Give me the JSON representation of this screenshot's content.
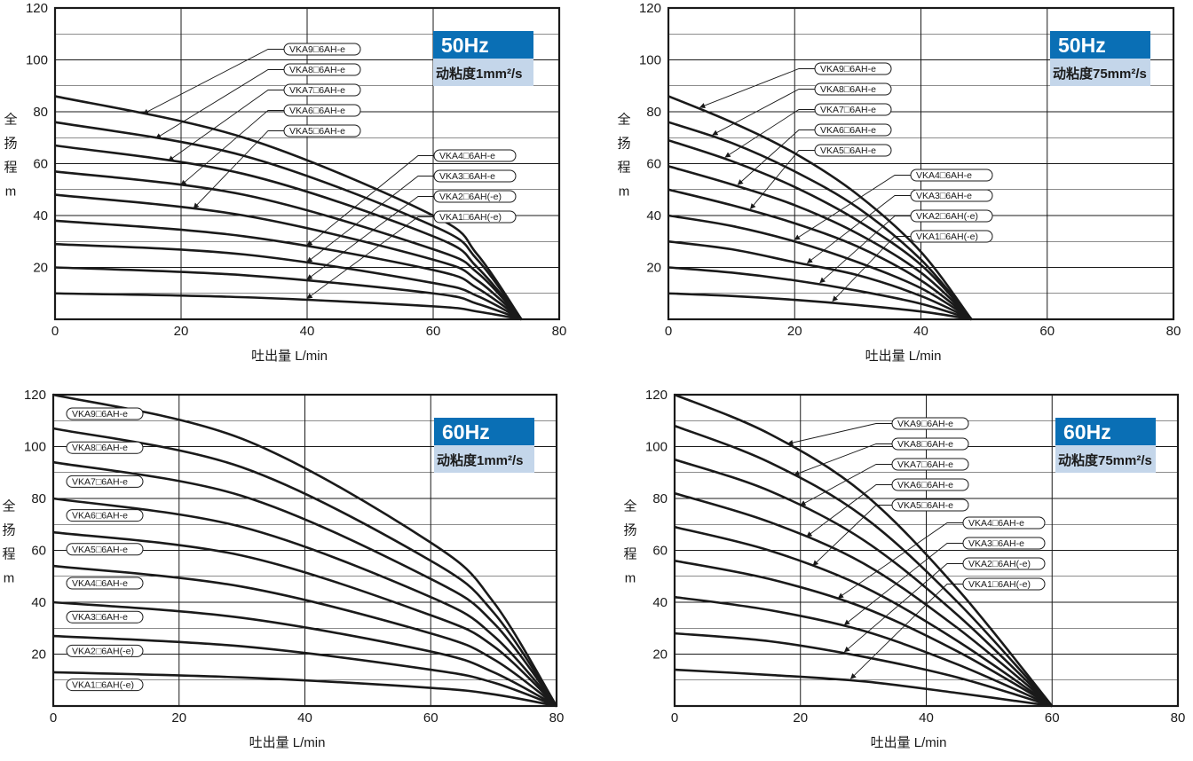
{
  "colors": {
    "curve": "#1a1a1a",
    "grid": "#1a1a1a",
    "badge_title_bg": "#0a6fb5",
    "badge_sub_bg": "#c4d6ea"
  },
  "chart_data": [
    {
      "type": "line",
      "badge": {
        "freq": "50Hz",
        "viscosity": "动粘度1mm²/s"
      },
      "xlabel": "吐出量  L/min",
      "ylabel_chars": [
        "全",
        "扬",
        "程",
        "m"
      ],
      "xlim": [
        0,
        80
      ],
      "ylim": [
        0,
        120
      ],
      "grid": true,
      "x_ticks": [
        "0",
        "20",
        "40",
        "60",
        "80"
      ],
      "y_ticks": [
        "20",
        "40",
        "60",
        "80",
        "100",
        "120"
      ],
      "x_max_flow": 74,
      "series": [
        {
          "name": "VKA9□6AH-e",
          "shutoff_head": 86,
          "values": [
            [
              0,
              86
            ],
            [
              30,
              70
            ],
            [
              60,
              40
            ],
            [
              67,
              25
            ],
            [
              74,
              0
            ]
          ]
        },
        {
          "name": "VKA8□6AH-e",
          "shutoff_head": 76,
          "values": [
            [
              0,
              76
            ],
            [
              30,
              63
            ],
            [
              60,
              36
            ],
            [
              67,
              23
            ],
            [
              74,
              0
            ]
          ]
        },
        {
          "name": "VKA7□6AH-e",
          "shutoff_head": 67,
          "values": [
            [
              0,
              67
            ],
            [
              30,
              56
            ],
            [
              60,
              32
            ],
            [
              67,
              20
            ],
            [
              74,
              0
            ]
          ]
        },
        {
          "name": "VKA6□6AH-e",
          "shutoff_head": 57,
          "values": [
            [
              0,
              57
            ],
            [
              30,
              48
            ],
            [
              60,
              27
            ],
            [
              67,
              18
            ],
            [
              74,
              0
            ]
          ]
        },
        {
          "name": "VKA5□6AH-e",
          "shutoff_head": 48,
          "values": [
            [
              0,
              48
            ],
            [
              30,
              40
            ],
            [
              60,
              23
            ],
            [
              67,
              15
            ],
            [
              74,
              0
            ]
          ]
        },
        {
          "name": "VKA4□6AH-e",
          "shutoff_head": 38,
          "values": [
            [
              0,
              38
            ],
            [
              30,
              32
            ],
            [
              60,
              19
            ],
            [
              67,
              12
            ],
            [
              74,
              0
            ]
          ]
        },
        {
          "name": "VKA3□6AH-e",
          "shutoff_head": 29,
          "values": [
            [
              0,
              29
            ],
            [
              30,
              25
            ],
            [
              60,
              14
            ],
            [
              67,
              9
            ],
            [
              74,
              0
            ]
          ]
        },
        {
          "name": "VKA2□6AH(-e)",
          "shutoff_head": 20,
          "values": [
            [
              0,
              20
            ],
            [
              30,
              17
            ],
            [
              60,
              10
            ],
            [
              67,
              6
            ],
            [
              74,
              0
            ]
          ]
        },
        {
          "name": "VKA1□6AH(-e)",
          "shutoff_head": 10,
          "values": [
            [
              0,
              10
            ],
            [
              30,
              8.5
            ],
            [
              60,
              5
            ],
            [
              67,
              3
            ],
            [
              74,
              0
            ]
          ]
        }
      ]
    },
    {
      "type": "line",
      "badge": {
        "freq": "50Hz",
        "viscosity": "动粘度75mm²/s"
      },
      "xlabel": "吐出量  L/min",
      "ylabel_chars": [
        "全",
        "扬",
        "程",
        "m"
      ],
      "xlim": [
        0,
        80
      ],
      "ylim": [
        0,
        120
      ],
      "grid": true,
      "x_ticks": [
        "0",
        "20",
        "40",
        "60",
        "80"
      ],
      "y_ticks": [
        "20",
        "40",
        "60",
        "80",
        "100",
        "120"
      ],
      "x_max_flow": 48,
      "series": [
        {
          "name": "VKA9□6AH-e",
          "shutoff_head": 86,
          "values": [
            [
              0,
              86
            ],
            [
              10,
              76
            ],
            [
              20,
              64
            ],
            [
              30,
              48
            ],
            [
              40,
              26
            ],
            [
              48,
              0
            ]
          ]
        },
        {
          "name": "VKA8□6AH-e",
          "shutoff_head": 76,
          "values": [
            [
              0,
              76
            ],
            [
              10,
              68
            ],
            [
              20,
              57
            ],
            [
              30,
              43
            ],
            [
              40,
              23
            ],
            [
              48,
              0
            ]
          ]
        },
        {
          "name": "VKA7□6AH-e",
          "shutoff_head": 69,
          "values": [
            [
              0,
              69
            ],
            [
              10,
              61
            ],
            [
              20,
              51
            ],
            [
              30,
              38
            ],
            [
              40,
              21
            ],
            [
              48,
              0
            ]
          ]
        },
        {
          "name": "VKA6□6AH-e",
          "shutoff_head": 59,
          "values": [
            [
              0,
              59
            ],
            [
              10,
              52
            ],
            [
              20,
              44
            ],
            [
              30,
              33
            ],
            [
              40,
              18
            ],
            [
              48,
              0
            ]
          ]
        },
        {
          "name": "VKA5□6AH-e",
          "shutoff_head": 50,
          "values": [
            [
              0,
              50
            ],
            [
              10,
              44
            ],
            [
              20,
              37
            ],
            [
              30,
              28
            ],
            [
              40,
              15
            ],
            [
              48,
              0
            ]
          ]
        },
        {
          "name": "VKA4□6AH-e",
          "shutoff_head": 40,
          "values": [
            [
              0,
              40
            ],
            [
              10,
              36
            ],
            [
              20,
              30
            ],
            [
              30,
              22
            ],
            [
              40,
              12
            ],
            [
              48,
              0
            ]
          ]
        },
        {
          "name": "VKA3□6AH-e",
          "shutoff_head": 30,
          "values": [
            [
              0,
              30
            ],
            [
              10,
              27
            ],
            [
              20,
              22
            ],
            [
              30,
              17
            ],
            [
              40,
              9
            ],
            [
              48,
              0
            ]
          ]
        },
        {
          "name": "VKA2□6AH(-e)",
          "shutoff_head": 20,
          "values": [
            [
              0,
              20
            ],
            [
              10,
              18
            ],
            [
              20,
              15
            ],
            [
              30,
              11
            ],
            [
              40,
              6
            ],
            [
              48,
              0
            ]
          ]
        },
        {
          "name": "VKA1□6AH(-e)",
          "shutoff_head": 10,
          "values": [
            [
              0,
              10
            ],
            [
              10,
              9
            ],
            [
              20,
              7.5
            ],
            [
              30,
              5.5
            ],
            [
              40,
              3
            ],
            [
              48,
              0
            ]
          ]
        }
      ]
    },
    {
      "type": "line",
      "badge": {
        "freq": "60Hz",
        "viscosity": "动粘度1mm²/s"
      },
      "xlabel": "吐出量  L/min",
      "ylabel_chars": [
        "全",
        "扬",
        "程",
        "m"
      ],
      "xlim": [
        0,
        80
      ],
      "ylim": [
        0,
        120
      ],
      "grid": true,
      "x_ticks": [
        "0",
        "20",
        "40",
        "60",
        "80"
      ],
      "y_ticks": [
        "20",
        "40",
        "60",
        "80",
        "100",
        "120"
      ],
      "x_max_flow": 80,
      "series": [
        {
          "name": "VKA9□6AH-e",
          "shutoff_head": 120,
          "values": [
            [
              0,
              120
            ],
            [
              30,
              103
            ],
            [
              60,
              63
            ],
            [
              70,
              40
            ],
            [
              80,
              0
            ]
          ]
        },
        {
          "name": "VKA8□6AH-e",
          "shutoff_head": 107,
          "values": [
            [
              0,
              107
            ],
            [
              30,
              92
            ],
            [
              60,
              56
            ],
            [
              70,
              36
            ],
            [
              80,
              0
            ]
          ]
        },
        {
          "name": "VKA7□6AH-e",
          "shutoff_head": 94,
          "values": [
            [
              0,
              94
            ],
            [
              30,
              81
            ],
            [
              60,
              49
            ],
            [
              70,
              32
            ],
            [
              80,
              0
            ]
          ]
        },
        {
          "name": "VKA6□6AH-e",
          "shutoff_head": 80,
          "values": [
            [
              0,
              80
            ],
            [
              30,
              69
            ],
            [
              60,
              42
            ],
            [
              70,
              27
            ],
            [
              80,
              0
            ]
          ]
        },
        {
          "name": "VKA5□6AH-e",
          "shutoff_head": 67,
          "values": [
            [
              0,
              67
            ],
            [
              30,
              58
            ],
            [
              60,
              35
            ],
            [
              70,
              23
            ],
            [
              80,
              0
            ]
          ]
        },
        {
          "name": "VKA4□6AH-e",
          "shutoff_head": 54,
          "values": [
            [
              0,
              54
            ],
            [
              30,
              46
            ],
            [
              60,
              28
            ],
            [
              70,
              18
            ],
            [
              80,
              0
            ]
          ]
        },
        {
          "name": "VKA3□6AH-e",
          "shutoff_head": 40,
          "values": [
            [
              0,
              40
            ],
            [
              30,
              34
            ],
            [
              60,
              21
            ],
            [
              70,
              13
            ],
            [
              80,
              0
            ]
          ]
        },
        {
          "name": "VKA2□6AH(-e)",
          "shutoff_head": 27,
          "values": [
            [
              0,
              27
            ],
            [
              30,
              23
            ],
            [
              60,
              14
            ],
            [
              70,
              9
            ],
            [
              80,
              0
            ]
          ]
        },
        {
          "name": "VKA1□6AH(-e)",
          "shutoff_head": 13,
          "values": [
            [
              0,
              13
            ],
            [
              30,
              11
            ],
            [
              60,
              7
            ],
            [
              70,
              4.5
            ],
            [
              80,
              0
            ]
          ]
        }
      ]
    },
    {
      "type": "line",
      "badge": {
        "freq": "60Hz",
        "viscosity": "动粘度75mm²/s"
      },
      "xlabel": "吐出量  L/min",
      "ylabel_chars": [
        "全",
        "扬",
        "程",
        "m"
      ],
      "xlim": [
        0,
        80
      ],
      "ylim": [
        0,
        120
      ],
      "grid": true,
      "x_ticks": [
        "0",
        "20",
        "40",
        "60",
        "80"
      ],
      "y_ticks": [
        "20",
        "40",
        "60",
        "80",
        "100",
        "120"
      ],
      "x_max_flow": 60,
      "series": [
        {
          "name": "VKA9□6AH-e",
          "shutoff_head": 120,
          "values": [
            [
              0,
              120
            ],
            [
              15,
              105
            ],
            [
              30,
              82
            ],
            [
              45,
              45
            ],
            [
              60,
              0
            ]
          ]
        },
        {
          "name": "VKA8□6AH-e",
          "shutoff_head": 108,
          "values": [
            [
              0,
              108
            ],
            [
              15,
              94
            ],
            [
              30,
              73
            ],
            [
              45,
              40
            ],
            [
              60,
              0
            ]
          ]
        },
        {
          "name": "VKA7□6AH-e",
          "shutoff_head": 95,
          "values": [
            [
              0,
              95
            ],
            [
              15,
              83
            ],
            [
              30,
              64
            ],
            [
              45,
              35
            ],
            [
              60,
              0
            ]
          ]
        },
        {
          "name": "VKA6□6AH-e",
          "shutoff_head": 82,
          "values": [
            [
              0,
              82
            ],
            [
              15,
              71
            ],
            [
              30,
              55
            ],
            [
              45,
              30
            ],
            [
              60,
              0
            ]
          ]
        },
        {
          "name": "VKA5□6AH-e",
          "shutoff_head": 69,
          "values": [
            [
              0,
              69
            ],
            [
              15,
              60
            ],
            [
              30,
              46
            ],
            [
              45,
              25
            ],
            [
              60,
              0
            ]
          ]
        },
        {
          "name": "VKA4□6AH-e",
          "shutoff_head": 56,
          "values": [
            [
              0,
              56
            ],
            [
              15,
              49
            ],
            [
              30,
              38
            ],
            [
              45,
              21
            ],
            [
              60,
              0
            ]
          ]
        },
        {
          "name": "VKA3□6AH-e",
          "shutoff_head": 42,
          "values": [
            [
              0,
              42
            ],
            [
              15,
              37
            ],
            [
              30,
              29
            ],
            [
              45,
              16
            ],
            [
              60,
              0
            ]
          ]
        },
        {
          "name": "VKA2□6AH(-e)",
          "shutoff_head": 28,
          "values": [
            [
              0,
              28
            ],
            [
              15,
              25
            ],
            [
              30,
              19
            ],
            [
              45,
              11
            ],
            [
              60,
              0
            ]
          ]
        },
        {
          "name": "VKA1□6AH(-e)",
          "shutoff_head": 14,
          "values": [
            [
              0,
              14
            ],
            [
              15,
              12
            ],
            [
              30,
              9.5
            ],
            [
              45,
              5
            ],
            [
              60,
              0
            ]
          ]
        }
      ]
    }
  ]
}
